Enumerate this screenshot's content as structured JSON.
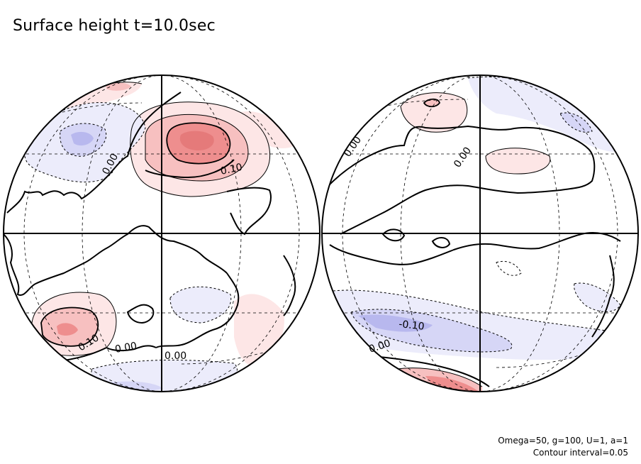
{
  "title": "Surface height t=10.0sec",
  "params": {
    "line1": "Omega=50, g=100, U=1, a=1",
    "line2": "Contour interval=0.05"
  },
  "contour_labels": {
    "left": [
      "0.00",
      "0.10",
      "0.10",
      "0.00",
      "0.00"
    ],
    "right": [
      "0.00",
      "0.00",
      "-0.10",
      "0.00"
    ]
  },
  "colors": {
    "positive_light": "#fde6e6",
    "positive_mid": "#f7c0c0",
    "positive_strong": "#ee8e8e",
    "negative_light": "#ececfb",
    "negative_mid": "#d6d6f6",
    "negative_strong": "#b8b8ee",
    "outline": "#000000"
  }
}
